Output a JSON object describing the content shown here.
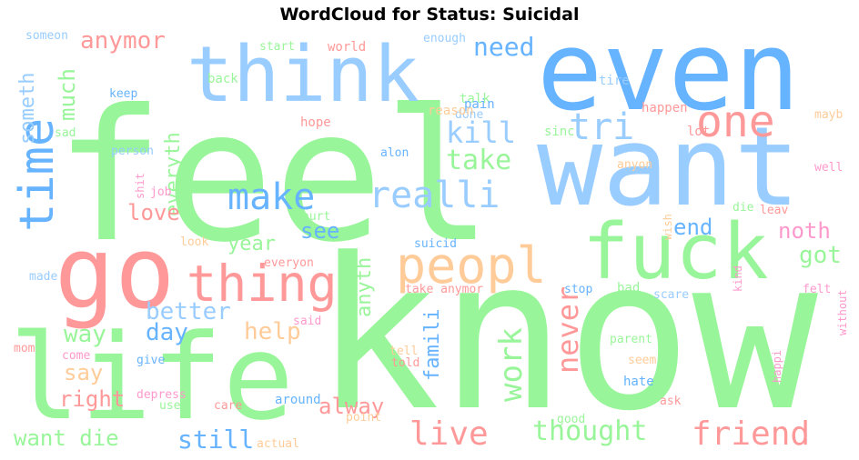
{
  "title": "WordCloud for Status: Suicidal",
  "palette": {
    "green": "#99f599",
    "blue": "#66b3ff",
    "lightblue": "#99ccff",
    "red": "#ff9999",
    "orange": "#ffcc99",
    "pink": "#ff99cc"
  },
  "words": [
    {
      "text": "feel",
      "color": "green"
    },
    {
      "text": "know",
      "color": "green"
    },
    {
      "text": "want",
      "color": "lightblue"
    },
    {
      "text": "even",
      "color": "blue"
    },
    {
      "text": "life",
      "color": "green"
    },
    {
      "text": "go",
      "color": "red"
    },
    {
      "text": "think",
      "color": "lightblue"
    },
    {
      "text": "fuck",
      "color": "green"
    },
    {
      "text": "peopl",
      "color": "orange"
    },
    {
      "text": "thing",
      "color": "red"
    },
    {
      "text": "time",
      "color": "blue"
    },
    {
      "text": "one",
      "color": "red"
    },
    {
      "text": "tri",
      "color": "lightblue"
    },
    {
      "text": "realli",
      "color": "lightblue"
    },
    {
      "text": "make",
      "color": "blue"
    },
    {
      "text": "kill",
      "color": "lightblue"
    },
    {
      "text": "take",
      "color": "green"
    },
    {
      "text": "need",
      "color": "blue"
    },
    {
      "text": "anymor",
      "color": "red"
    },
    {
      "text": "much",
      "color": "green"
    },
    {
      "text": "someth",
      "color": "lightblue"
    },
    {
      "text": "everyth",
      "color": "green"
    },
    {
      "text": "love",
      "color": "red"
    },
    {
      "text": "year",
      "color": "green"
    },
    {
      "text": "see",
      "color": "blue"
    },
    {
      "text": "end",
      "color": "blue"
    },
    {
      "text": "noth",
      "color": "pink"
    },
    {
      "text": "got",
      "color": "green"
    },
    {
      "text": "never",
      "color": "red"
    },
    {
      "text": "work",
      "color": "green"
    },
    {
      "text": "anyth",
      "color": "green"
    },
    {
      "text": "better",
      "color": "lightblue"
    },
    {
      "text": "day",
      "color": "blue"
    },
    {
      "text": "way",
      "color": "green"
    },
    {
      "text": "help",
      "color": "orange"
    },
    {
      "text": "famili",
      "color": "blue"
    },
    {
      "text": "say",
      "color": "orange"
    },
    {
      "text": "right",
      "color": "red"
    },
    {
      "text": "want die",
      "color": "green"
    },
    {
      "text": "still",
      "color": "blue"
    },
    {
      "text": "alway",
      "color": "red"
    },
    {
      "text": "live",
      "color": "red"
    },
    {
      "text": "thought",
      "color": "green"
    },
    {
      "text": "friend",
      "color": "red"
    },
    {
      "text": "someon",
      "color": "lightblue"
    },
    {
      "text": "start",
      "color": "green"
    },
    {
      "text": "world",
      "color": "red"
    },
    {
      "text": "enough",
      "color": "lightblue"
    },
    {
      "text": "back",
      "color": "green"
    },
    {
      "text": "keep",
      "color": "blue"
    },
    {
      "text": "talk",
      "color": "green"
    },
    {
      "text": "done",
      "color": "lightblue"
    },
    {
      "text": "pain",
      "color": "blue"
    },
    {
      "text": "reason",
      "color": "orange"
    },
    {
      "text": "hope",
      "color": "red"
    },
    {
      "text": "sad",
      "color": "green"
    },
    {
      "text": "person",
      "color": "lightblue"
    },
    {
      "text": "shit",
      "color": "pink"
    },
    {
      "text": "job",
      "color": "pink"
    },
    {
      "text": "alon",
      "color": "blue"
    },
    {
      "text": "sinc",
      "color": "green"
    },
    {
      "text": "lot",
      "color": "red"
    },
    {
      "text": "happen",
      "color": "red"
    },
    {
      "text": "tire",
      "color": "lightblue"
    },
    {
      "text": "mayb",
      "color": "orange"
    },
    {
      "text": "anyon",
      "color": "orange"
    },
    {
      "text": "well",
      "color": "pink"
    },
    {
      "text": "die",
      "color": "green"
    },
    {
      "text": "leav",
      "color": "red"
    },
    {
      "text": "wish",
      "color": "orange"
    },
    {
      "text": "hurt",
      "color": "green"
    },
    {
      "text": "look",
      "color": "orange"
    },
    {
      "text": "suicid",
      "color": "blue"
    },
    {
      "text": "made",
      "color": "lightblue"
    },
    {
      "text": "everyon",
      "color": "red"
    },
    {
      "text": "take anymor",
      "color": "red"
    },
    {
      "text": "stop",
      "color": "blue"
    },
    {
      "text": "bad",
      "color": "green"
    },
    {
      "text": "scare",
      "color": "lightblue"
    },
    {
      "text": "felt",
      "color": "pink"
    },
    {
      "text": "kind",
      "color": "pink"
    },
    {
      "text": "without",
      "color": "pink"
    },
    {
      "text": "said",
      "color": "pink"
    },
    {
      "text": "mom",
      "color": "red"
    },
    {
      "text": "come",
      "color": "pink"
    },
    {
      "text": "give",
      "color": "blue"
    },
    {
      "text": "tell",
      "color": "orange"
    },
    {
      "text": "told",
      "color": "red"
    },
    {
      "text": "parent",
      "color": "green"
    },
    {
      "text": "seem",
      "color": "orange"
    },
    {
      "text": "hate",
      "color": "blue"
    },
    {
      "text": "happi",
      "color": "pink"
    },
    {
      "text": "depress",
      "color": "pink"
    },
    {
      "text": "use",
      "color": "green"
    },
    {
      "text": "care",
      "color": "red"
    },
    {
      "text": "around",
      "color": "blue"
    },
    {
      "text": "point",
      "color": "orange"
    },
    {
      "text": "good",
      "color": "green"
    },
    {
      "text": "ask",
      "color": "red"
    },
    {
      "text": "actual",
      "color": "orange"
    }
  ]
}
